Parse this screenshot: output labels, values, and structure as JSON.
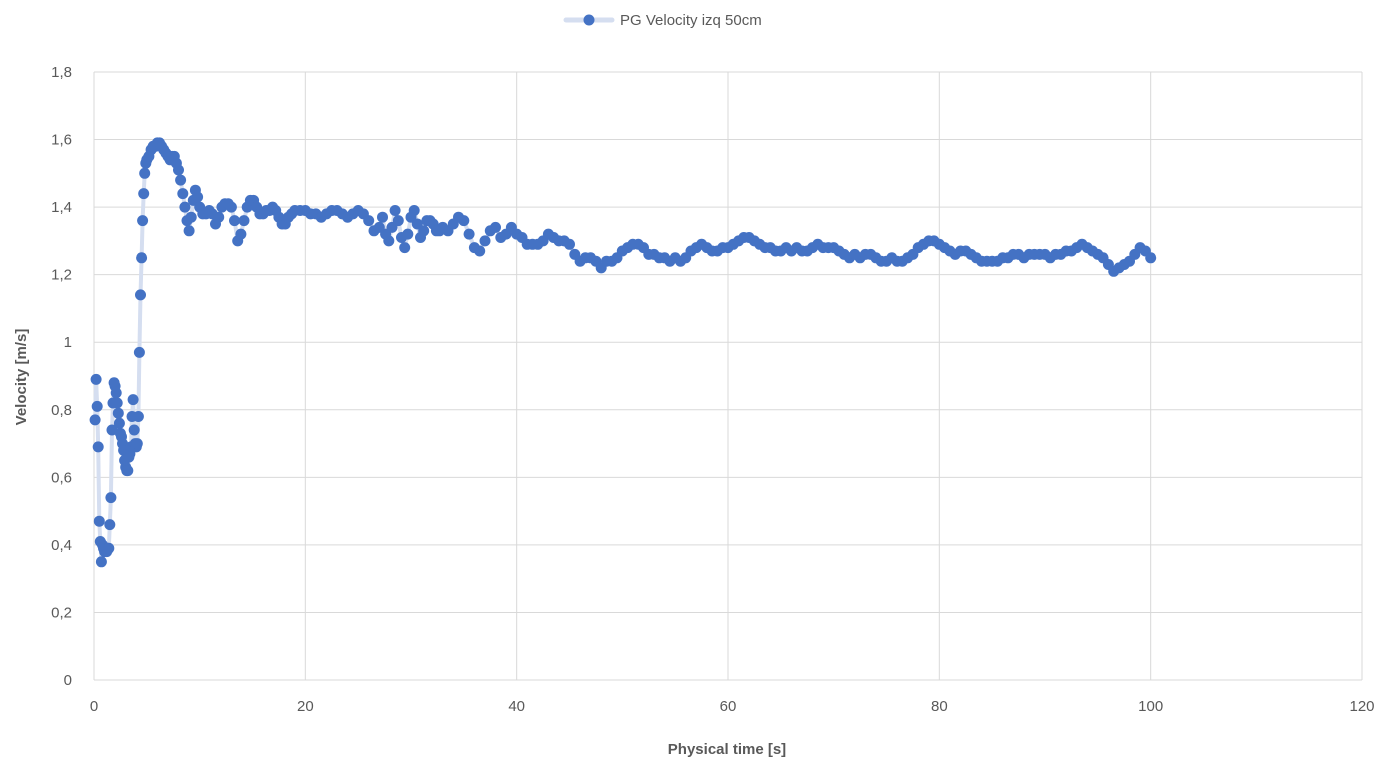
{
  "chart_data": {
    "type": "line",
    "title": "",
    "xlabel": "Physical time [s]",
    "ylabel": "Velocity [m/s]",
    "xlim": [
      0,
      120
    ],
    "ylim": [
      0,
      1.8
    ],
    "x_ticks": [
      "0",
      "20",
      "40",
      "60",
      "80",
      "100",
      "120"
    ],
    "y_ticks": [
      "0",
      "0,2",
      "0,4",
      "0,6",
      "0,8",
      "1",
      "1,2",
      "1,4",
      "1,6",
      "1,8"
    ],
    "grid": true,
    "legend_position": "top",
    "series": [
      {
        "name": "PG Velocity izq 50cm",
        "color": "#4472C4",
        "line_color": "#D5DEF0",
        "points": [
          [
            0.1,
            0.77
          ],
          [
            0.2,
            0.89
          ],
          [
            0.3,
            0.81
          ],
          [
            0.4,
            0.69
          ],
          [
            0.5,
            0.47
          ],
          [
            0.6,
            0.41
          ],
          [
            0.7,
            0.35
          ],
          [
            0.8,
            0.4
          ],
          [
            0.9,
            0.39
          ],
          [
            1.0,
            0.38
          ],
          [
            1.1,
            0.39
          ],
          [
            1.2,
            0.38
          ],
          [
            1.3,
            0.39
          ],
          [
            1.4,
            0.39
          ],
          [
            1.5,
            0.46
          ],
          [
            1.6,
            0.54
          ],
          [
            1.7,
            0.74
          ],
          [
            1.8,
            0.82
          ],
          [
            1.9,
            0.88
          ],
          [
            2.0,
            0.87
          ],
          [
            2.1,
            0.85
          ],
          [
            2.2,
            0.82
          ],
          [
            2.3,
            0.79
          ],
          [
            2.4,
            0.76
          ],
          [
            2.5,
            0.73
          ],
          [
            2.6,
            0.72
          ],
          [
            2.7,
            0.7
          ],
          [
            2.8,
            0.68
          ],
          [
            2.9,
            0.65
          ],
          [
            3.0,
            0.63
          ],
          [
            3.1,
            0.62
          ],
          [
            3.2,
            0.62
          ],
          [
            3.3,
            0.66
          ],
          [
            3.4,
            0.67
          ],
          [
            3.5,
            0.69
          ],
          [
            3.6,
            0.78
          ],
          [
            3.7,
            0.83
          ],
          [
            3.8,
            0.74
          ],
          [
            3.9,
            0.7
          ],
          [
            4.0,
            0.69
          ],
          [
            4.1,
            0.7
          ],
          [
            4.2,
            0.78
          ],
          [
            4.3,
            0.97
          ],
          [
            4.4,
            1.14
          ],
          [
            4.5,
            1.25
          ],
          [
            4.6,
            1.36
          ],
          [
            4.7,
            1.44
          ],
          [
            4.8,
            1.5
          ],
          [
            4.9,
            1.53
          ],
          [
            5.0,
            1.54
          ],
          [
            5.2,
            1.55
          ],
          [
            5.4,
            1.57
          ],
          [
            5.6,
            1.58
          ],
          [
            5.8,
            1.58
          ],
          [
            6.0,
            1.59
          ],
          [
            6.2,
            1.59
          ],
          [
            6.4,
            1.58
          ],
          [
            6.6,
            1.57
          ],
          [
            6.8,
            1.56
          ],
          [
            7.0,
            1.55
          ],
          [
            7.2,
            1.54
          ],
          [
            7.4,
            1.55
          ],
          [
            7.6,
            1.55
          ],
          [
            7.8,
            1.53
          ],
          [
            8.0,
            1.51
          ],
          [
            8.2,
            1.48
          ],
          [
            8.4,
            1.44
          ],
          [
            8.6,
            1.4
          ],
          [
            8.8,
            1.36
          ],
          [
            9.0,
            1.33
          ],
          [
            9.2,
            1.37
          ],
          [
            9.4,
            1.42
          ],
          [
            9.6,
            1.45
          ],
          [
            9.8,
            1.43
          ],
          [
            10.0,
            1.4
          ],
          [
            10.3,
            1.38
          ],
          [
            10.6,
            1.38
          ],
          [
            10.9,
            1.39
          ],
          [
            11.2,
            1.38
          ],
          [
            11.5,
            1.35
          ],
          [
            11.8,
            1.37
          ],
          [
            12.1,
            1.4
          ],
          [
            12.4,
            1.41
          ],
          [
            12.7,
            1.41
          ],
          [
            13.0,
            1.4
          ],
          [
            13.3,
            1.36
          ],
          [
            13.6,
            1.3
          ],
          [
            13.9,
            1.32
          ],
          [
            14.2,
            1.36
          ],
          [
            14.5,
            1.4
          ],
          [
            14.8,
            1.42
          ],
          [
            15.1,
            1.42
          ],
          [
            15.4,
            1.4
          ],
          [
            15.7,
            1.38
          ],
          [
            16.0,
            1.38
          ],
          [
            16.3,
            1.39
          ],
          [
            16.6,
            1.39
          ],
          [
            16.9,
            1.4
          ],
          [
            17.2,
            1.39
          ],
          [
            17.5,
            1.37
          ],
          [
            17.8,
            1.35
          ],
          [
            18.1,
            1.35
          ],
          [
            18.4,
            1.37
          ],
          [
            18.7,
            1.38
          ],
          [
            19.0,
            1.39
          ],
          [
            19.5,
            1.39
          ],
          [
            20.0,
            1.39
          ],
          [
            20.5,
            1.38
          ],
          [
            21.0,
            1.38
          ],
          [
            21.5,
            1.37
          ],
          [
            22.0,
            1.38
          ],
          [
            22.5,
            1.39
          ],
          [
            23.0,
            1.39
          ],
          [
            23.5,
            1.38
          ],
          [
            24.0,
            1.37
          ],
          [
            24.5,
            1.38
          ],
          [
            25.0,
            1.39
          ],
          [
            25.5,
            1.38
          ],
          [
            26.0,
            1.36
          ],
          [
            26.5,
            1.33
          ],
          [
            27.0,
            1.34
          ],
          [
            27.3,
            1.37
          ],
          [
            27.6,
            1.32
          ],
          [
            27.9,
            1.3
          ],
          [
            28.2,
            1.34
          ],
          [
            28.5,
            1.39
          ],
          [
            28.8,
            1.36
          ],
          [
            29.1,
            1.31
          ],
          [
            29.4,
            1.28
          ],
          [
            29.7,
            1.32
          ],
          [
            30.0,
            1.37
          ],
          [
            30.3,
            1.39
          ],
          [
            30.6,
            1.35
          ],
          [
            30.9,
            1.31
          ],
          [
            31.2,
            1.33
          ],
          [
            31.5,
            1.36
          ],
          [
            31.8,
            1.36
          ],
          [
            32.1,
            1.35
          ],
          [
            32.4,
            1.33
          ],
          [
            32.7,
            1.33
          ],
          [
            33.0,
            1.34
          ],
          [
            33.5,
            1.33
          ],
          [
            34.0,
            1.35
          ],
          [
            34.5,
            1.37
          ],
          [
            35.0,
            1.36
          ],
          [
            35.5,
            1.32
          ],
          [
            36.0,
            1.28
          ],
          [
            36.5,
            1.27
          ],
          [
            37.0,
            1.3
          ],
          [
            37.5,
            1.33
          ],
          [
            38.0,
            1.34
          ],
          [
            38.5,
            1.31
          ],
          [
            39.0,
            1.32
          ],
          [
            39.5,
            1.34
          ],
          [
            40.0,
            1.32
          ],
          [
            40.5,
            1.31
          ],
          [
            41.0,
            1.29
          ],
          [
            41.5,
            1.29
          ],
          [
            42.0,
            1.29
          ],
          [
            42.5,
            1.3
          ],
          [
            43.0,
            1.32
          ],
          [
            43.5,
            1.31
          ],
          [
            44.0,
            1.3
          ],
          [
            44.5,
            1.3
          ],
          [
            45.0,
            1.29
          ],
          [
            45.5,
            1.26
          ],
          [
            46.0,
            1.24
          ],
          [
            46.5,
            1.25
          ],
          [
            47.0,
            1.25
          ],
          [
            47.5,
            1.24
          ],
          [
            48.0,
            1.22
          ],
          [
            48.5,
            1.24
          ],
          [
            49.0,
            1.24
          ],
          [
            49.5,
            1.25
          ],
          [
            50.0,
            1.27
          ],
          [
            50.5,
            1.28
          ],
          [
            51.0,
            1.29
          ],
          [
            51.5,
            1.29
          ],
          [
            52.0,
            1.28
          ],
          [
            52.5,
            1.26
          ],
          [
            53.0,
            1.26
          ],
          [
            53.5,
            1.25
          ],
          [
            54.0,
            1.25
          ],
          [
            54.5,
            1.24
          ],
          [
            55.0,
            1.25
          ],
          [
            55.5,
            1.24
          ],
          [
            56.0,
            1.25
          ],
          [
            56.5,
            1.27
          ],
          [
            57.0,
            1.28
          ],
          [
            57.5,
            1.29
          ],
          [
            58.0,
            1.28
          ],
          [
            58.5,
            1.27
          ],
          [
            59.0,
            1.27
          ],
          [
            59.5,
            1.28
          ],
          [
            60.0,
            1.28
          ],
          [
            60.5,
            1.29
          ],
          [
            61.0,
            1.3
          ],
          [
            61.5,
            1.31
          ],
          [
            62.0,
            1.31
          ],
          [
            62.5,
            1.3
          ],
          [
            63.0,
            1.29
          ],
          [
            63.5,
            1.28
          ],
          [
            64.0,
            1.28
          ],
          [
            64.5,
            1.27
          ],
          [
            65.0,
            1.27
          ],
          [
            65.5,
            1.28
          ],
          [
            66.0,
            1.27
          ],
          [
            66.5,
            1.28
          ],
          [
            67.0,
            1.27
          ],
          [
            67.5,
            1.27
          ],
          [
            68.0,
            1.28
          ],
          [
            68.5,
            1.29
          ],
          [
            69.0,
            1.28
          ],
          [
            69.5,
            1.28
          ],
          [
            70.0,
            1.28
          ],
          [
            70.5,
            1.27
          ],
          [
            71.0,
            1.26
          ],
          [
            71.5,
            1.25
          ],
          [
            72.0,
            1.26
          ],
          [
            72.5,
            1.25
          ],
          [
            73.0,
            1.26
          ],
          [
            73.5,
            1.26
          ],
          [
            74.0,
            1.25
          ],
          [
            74.5,
            1.24
          ],
          [
            75.0,
            1.24
          ],
          [
            75.5,
            1.25
          ],
          [
            76.0,
            1.24
          ],
          [
            76.5,
            1.24
          ],
          [
            77.0,
            1.25
          ],
          [
            77.5,
            1.26
          ],
          [
            78.0,
            1.28
          ],
          [
            78.5,
            1.29
          ],
          [
            79.0,
            1.3
          ],
          [
            79.5,
            1.3
          ],
          [
            80.0,
            1.29
          ],
          [
            80.5,
            1.28
          ],
          [
            81.0,
            1.27
          ],
          [
            81.5,
            1.26
          ],
          [
            82.0,
            1.27
          ],
          [
            82.5,
            1.27
          ],
          [
            83.0,
            1.26
          ],
          [
            83.5,
            1.25
          ],
          [
            84.0,
            1.24
          ],
          [
            84.5,
            1.24
          ],
          [
            85.0,
            1.24
          ],
          [
            85.5,
            1.24
          ],
          [
            86.0,
            1.25
          ],
          [
            86.5,
            1.25
          ],
          [
            87.0,
            1.26
          ],
          [
            87.5,
            1.26
          ],
          [
            88.0,
            1.25
          ],
          [
            88.5,
            1.26
          ],
          [
            89.0,
            1.26
          ],
          [
            89.5,
            1.26
          ],
          [
            90.0,
            1.26
          ],
          [
            90.5,
            1.25
          ],
          [
            91.0,
            1.26
          ],
          [
            91.5,
            1.26
          ],
          [
            92.0,
            1.27
          ],
          [
            92.5,
            1.27
          ],
          [
            93.0,
            1.28
          ],
          [
            93.5,
            1.29
          ],
          [
            94.0,
            1.28
          ],
          [
            94.5,
            1.27
          ],
          [
            95.0,
            1.26
          ],
          [
            95.5,
            1.25
          ],
          [
            96.0,
            1.23
          ],
          [
            96.5,
            1.21
          ],
          [
            97.0,
            1.22
          ],
          [
            97.5,
            1.23
          ],
          [
            98.0,
            1.24
          ],
          [
            98.5,
            1.26
          ],
          [
            99.0,
            1.28
          ],
          [
            99.5,
            1.27
          ],
          [
            100.0,
            1.25
          ]
        ]
      }
    ]
  }
}
